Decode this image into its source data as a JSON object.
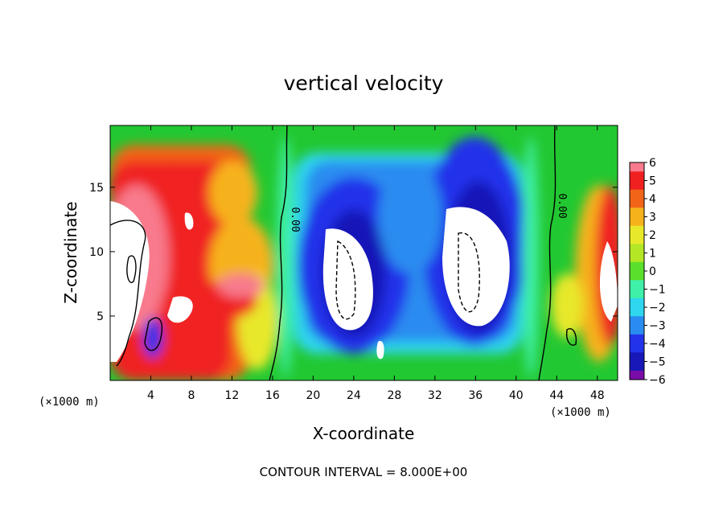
{
  "chart_data": {
    "type": "heatmap",
    "title": "vertical velocity",
    "xlabel": "X-coordinate",
    "ylabel": "Z-coordinate",
    "x_unit": "(×1000 m)",
    "xlim": [
      0,
      50
    ],
    "ylim": [
      0,
      19.8
    ],
    "x_ticks": [
      4,
      8,
      12,
      16,
      20,
      24,
      28,
      32,
      36,
      40,
      44,
      48
    ],
    "y_ticks": [
      5,
      10,
      15
    ],
    "colorbar": {
      "ticks": [
        6,
        5,
        4,
        3,
        2,
        1,
        0,
        -1,
        -2,
        -3,
        -4,
        -5,
        -6
      ],
      "range": [
        -6,
        6
      ]
    },
    "contour_labels": [
      "0.00",
      "0.00"
    ],
    "note": "CONTOUR INTERVAL = 8.000E+00"
  }
}
